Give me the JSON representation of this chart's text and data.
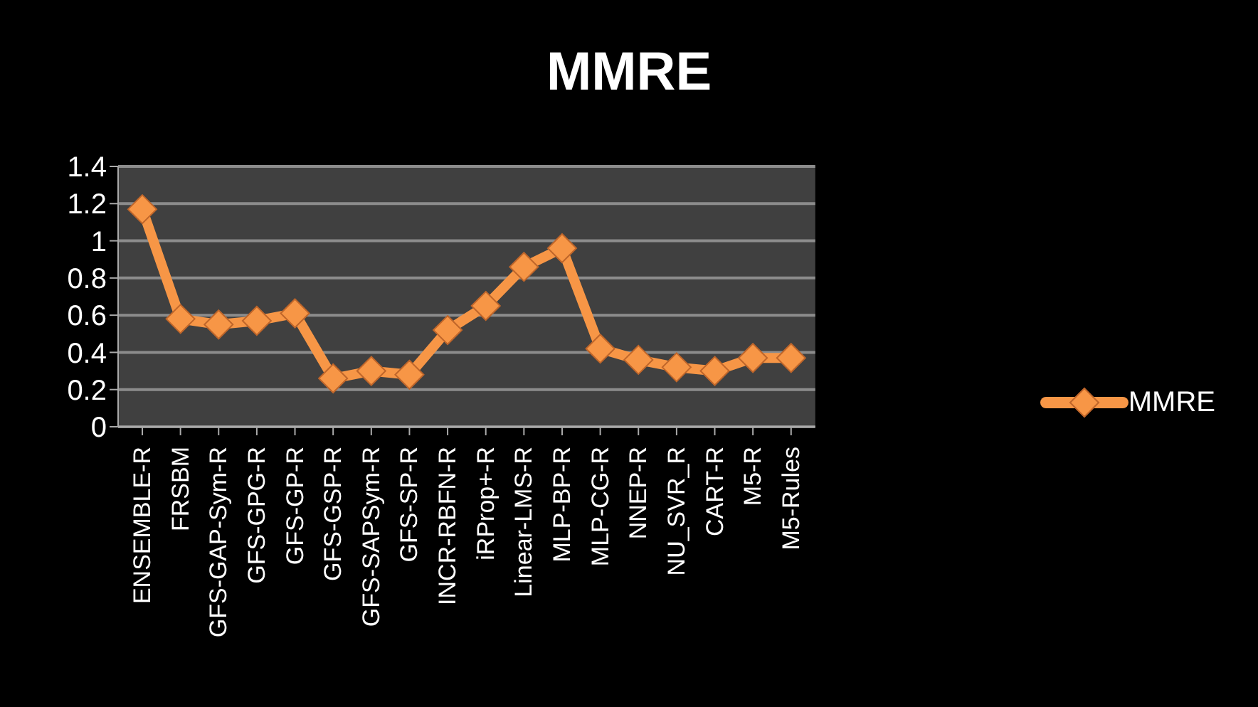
{
  "chart_data": {
    "type": "line",
    "title": "MMRE",
    "categories": [
      "ENSEMBLE-R",
      "FRSBM",
      "GFS-GAP-Sym-R",
      "GFS-GPG-R",
      "GFS-GP-R",
      "GFS-GSP-R",
      "GFS-SAPSym-R",
      "GFS-SP-R",
      "INCR-RBFN-R",
      "iRProp+-R",
      "Linear-LMS-R",
      "MLP-BP-R",
      "MLP-CG-R",
      "NNEP-R",
      "NU_SVR_R",
      "CART-R",
      "M5-R",
      "M5-Rules"
    ],
    "series": [
      {
        "name": "MMRE",
        "color": "#f79646",
        "values": [
          1.17,
          0.58,
          0.55,
          0.57,
          0.61,
          0.26,
          0.3,
          0.28,
          0.52,
          0.65,
          0.86,
          0.96,
          0.42,
          0.36,
          0.32,
          0.3,
          0.37,
          0.37
        ]
      }
    ],
    "ylim": [
      0,
      1.4
    ],
    "yticks": [
      0,
      0.2,
      0.4,
      0.6,
      0.8,
      1,
      1.2,
      1.4
    ],
    "grid": "y",
    "legend": "right",
    "marker": "diamond"
  }
}
